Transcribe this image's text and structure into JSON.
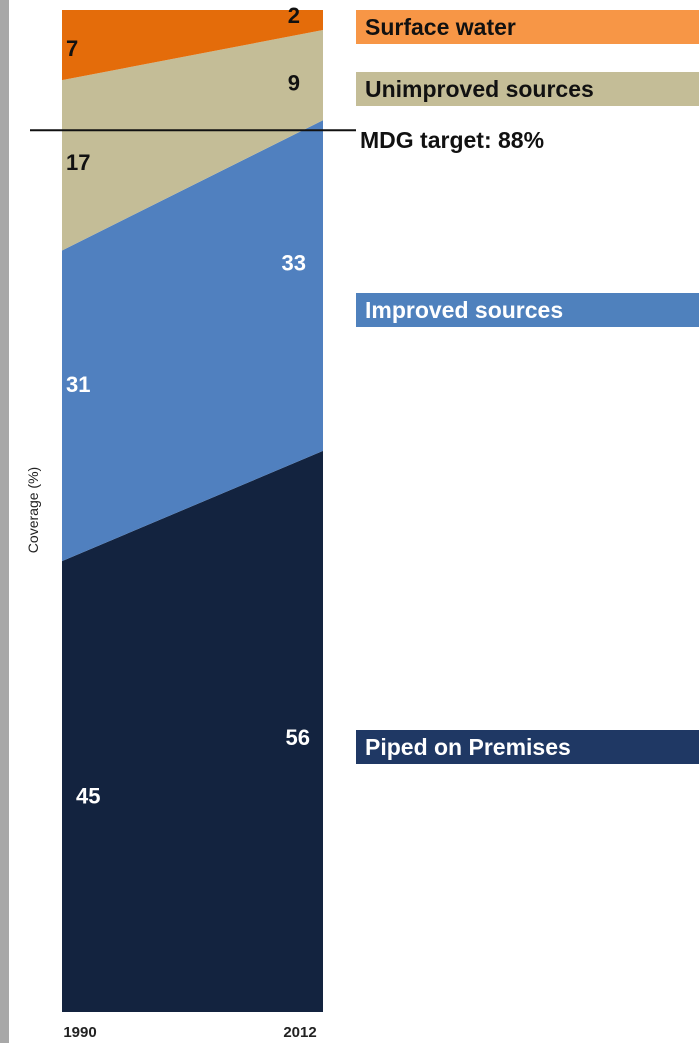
{
  "chart_data": {
    "type": "area",
    "x": [
      "1990",
      "2012"
    ],
    "ylabel": "Coverage (%)",
    "ylim": [
      0,
      100
    ],
    "series": [
      {
        "name": "Piped on Premises",
        "values": [
          45,
          56
        ],
        "color": "#13233f",
        "label_color": "#ffffff"
      },
      {
        "name": "Improved sources",
        "values": [
          31,
          33
        ],
        "color": "#5080bf",
        "label_color": "#ffffff"
      },
      {
        "name": "Unimproved sources",
        "values": [
          17,
          9
        ],
        "color": "#c4bd97",
        "label_color": "#111111"
      },
      {
        "name": "Surface water",
        "values": [
          7,
          2
        ],
        "color": "#e46c0a",
        "label_color": "#111111"
      }
    ],
    "target": {
      "label": "MDG target: 88%",
      "value": 88
    }
  },
  "legend_colors": [
    "#f79646",
    "#c4bd97",
    "#4f81bd",
    "#1f3864"
  ],
  "legend_text_colors": [
    "#111111",
    "#111111",
    "#ffffff",
    "#ffffff"
  ]
}
